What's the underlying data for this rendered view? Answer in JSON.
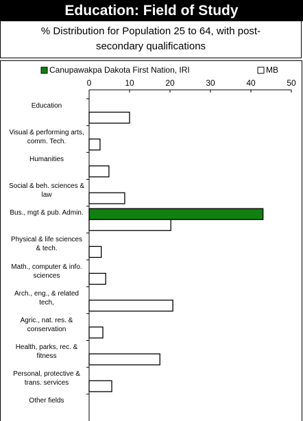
{
  "chart_data": {
    "type": "barh",
    "title": "Education: Field of Study",
    "subtitle": "% Distribution for Population 25 to 64, with post-secondary qualifications",
    "categories": [
      "Education",
      "Visual & performing arts, comm. Tech.",
      "Humanities",
      "Social & beh. sciences & law",
      "Bus., mgt & pub. Admin.",
      "Physical & life sciences & tech.",
      "Math., computer & info. sciences",
      "Arch., eng., & related tech,",
      "Agric., nat. res. & conservation",
      "Health, parks, rec. & fitness",
      "Personal, protective & trans. services",
      "Other fields"
    ],
    "series": [
      {
        "name": "Canupawakpa Dakota First Nation, IRI",
        "color": "#108010",
        "values": [
          0,
          0,
          0,
          0,
          43,
          0,
          0,
          0,
          0,
          0,
          0,
          0
        ]
      },
      {
        "name": "MB",
        "color": "#ffffff",
        "values": [
          10,
          2.7,
          4.9,
          8.8,
          20.2,
          3.0,
          4.1,
          20.7,
          3.4,
          17.5,
          5.6,
          0
        ]
      }
    ],
    "xlim": [
      0,
      50
    ],
    "xticks": [
      0,
      10,
      20,
      30,
      40,
      50
    ]
  }
}
